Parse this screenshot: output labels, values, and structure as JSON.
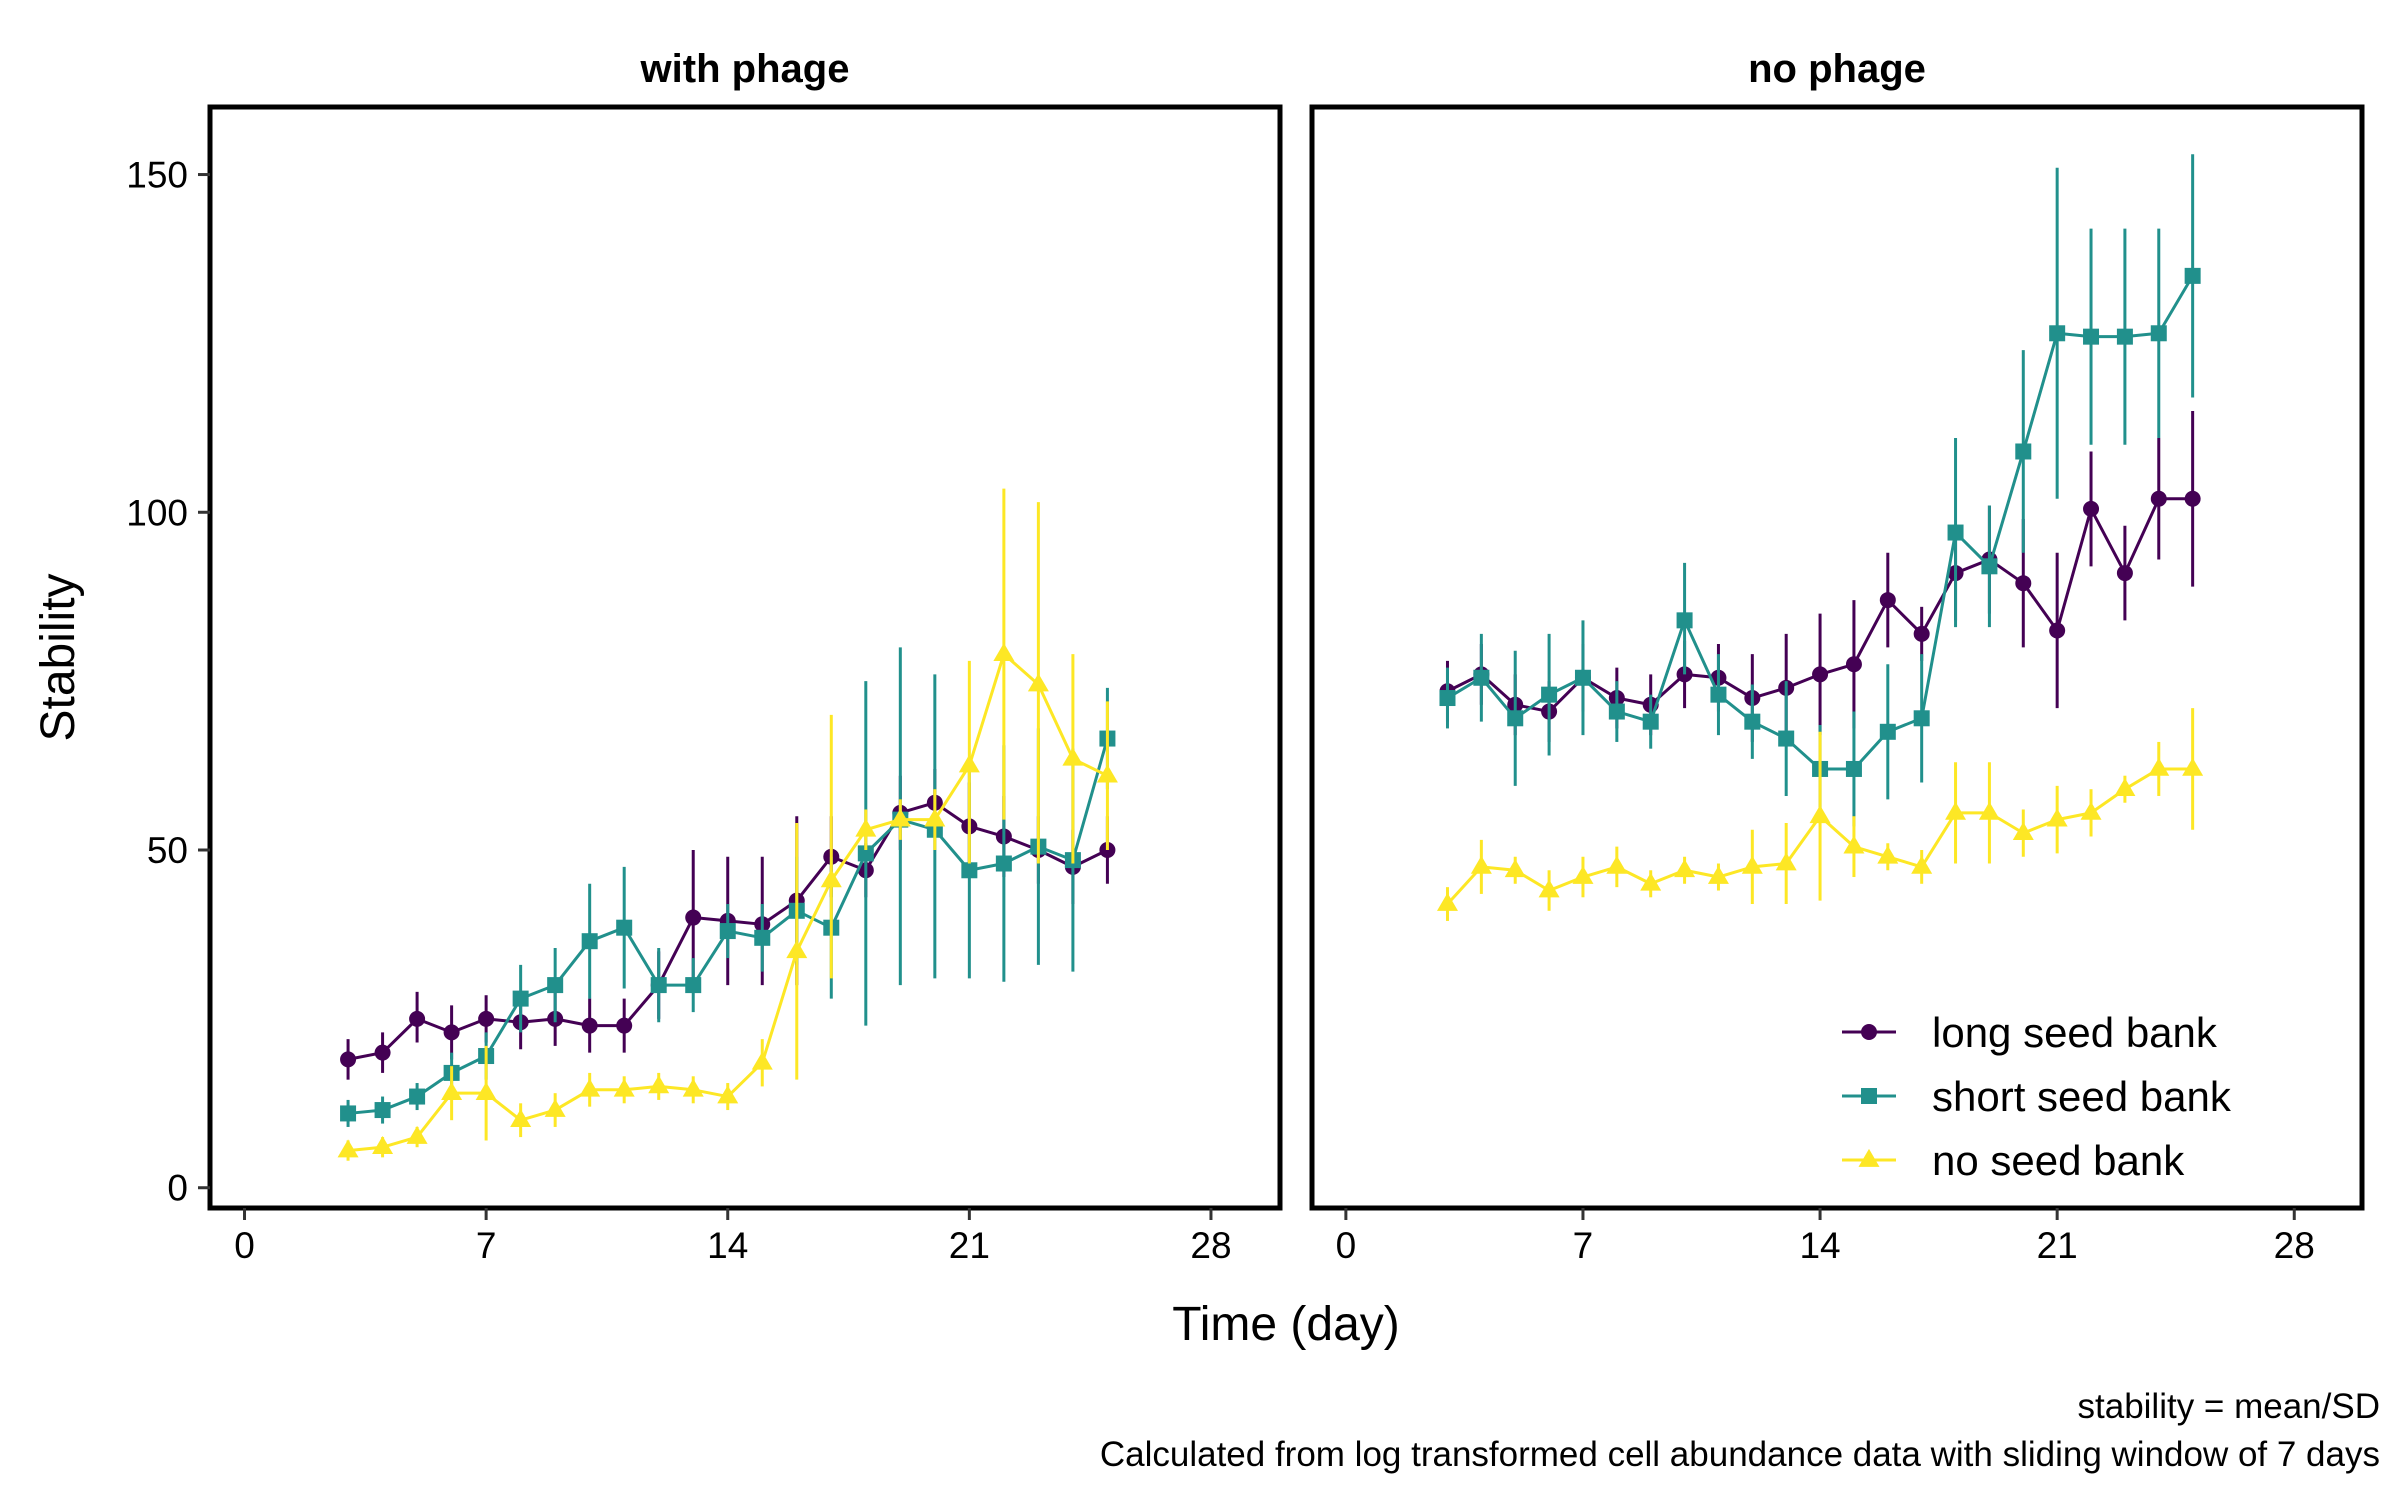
{
  "chart_data": {
    "type": "line",
    "xlabel": "Time (day)",
    "ylabel": "Stability",
    "xlim": [
      -1,
      30
    ],
    "ylim": [
      -3,
      160
    ],
    "x_ticks": [
      0,
      7,
      14,
      21,
      28
    ],
    "y_ticks": [
      0,
      50,
      100,
      150
    ],
    "grid": false,
    "legend_position": "bottom-right of right panel",
    "caption": [
      "stability = mean/SD",
      "Calculated from log transformed cell abundance data with sliding window of 7 days"
    ],
    "x": [
      3,
      4,
      5,
      6,
      7,
      8,
      9,
      10,
      11,
      12,
      13,
      14,
      15,
      16,
      17,
      18,
      19,
      20,
      21,
      22,
      23,
      24,
      25
    ],
    "series_styles": [
      {
        "name": "long seed bank",
        "color": "#440154",
        "marker": "circle"
      },
      {
        "name": "short seed bank",
        "color": "#21908C",
        "marker": "square"
      },
      {
        "name": "no seed bank",
        "color": "#FDE725",
        "marker": "triangle"
      }
    ],
    "panels": [
      {
        "title": "with phage",
        "series": [
          {
            "name": "long seed bank",
            "y": [
              19,
              20,
              25,
              23,
              25,
              24.5,
              25,
              24,
              24,
              30,
              40,
              39.5,
              39,
              42.5,
              49,
              47,
              55.5,
              57,
              53.5,
              52,
              50,
              47.5,
              50
            ],
            "lo": [
              16,
              17,
              21.5,
              19,
              21.5,
              20.5,
              21,
              20,
              20,
              25,
              30,
              30,
              30,
              30,
              43,
              43,
              50,
              52,
              47,
              46,
              45,
              42,
              45
            ],
            "hi": [
              22,
              23,
              29,
              27,
              28.5,
              28.5,
              29,
              28,
              28,
              35,
              50,
              49,
              49,
              55,
              55,
              51,
              61,
              62,
              60,
              58,
              55,
              53,
              55
            ]
          },
          {
            "name": "short seed bank",
            "y": [
              11,
              11.5,
              13.5,
              17,
              19.5,
              28,
              30,
              36.5,
              38.5,
              30,
              30,
              38,
              37,
              41,
              38.5,
              49.5,
              54.5,
              53,
              47,
              48,
              50.5,
              48.5,
              66.5
            ],
            "lo": [
              9,
              9.5,
              11.5,
              14,
              16,
              23,
              24.5,
              28,
              29.5,
              24.5,
              26,
              34,
              32,
              33,
              28,
              24,
              30,
              31,
              31,
              30.5,
              33,
              32,
              59
            ],
            "hi": [
              13,
              13.5,
              15.5,
              20,
              23,
              33,
              35.5,
              45,
              47.5,
              35.5,
              34,
              42,
              42,
              49,
              49,
              75,
              80,
              76,
              63,
              65.5,
              68,
              65,
              74
            ]
          },
          {
            "name": "no seed bank",
            "y": [
              5.5,
              6,
              7.5,
              14,
              14,
              10,
              11.5,
              14.5,
              14.5,
              15,
              14.5,
              13.5,
              18.5,
              35,
              45.5,
              53,
              54.5,
              54.5,
              62.5,
              79,
              74.5,
              63.5,
              61
            ],
            "lo": [
              4,
              4.5,
              6,
              10,
              7,
              7.5,
              9,
              12,
              12.5,
              13,
              12.5,
              11.5,
              15,
              16,
              31,
              50,
              51.5,
              50,
              48,
              54.5,
              48,
              48,
              50
            ],
            "hi": [
              7,
              7.5,
              9,
              18,
              21,
              12.5,
              14,
              17,
              16.5,
              17,
              16.5,
              15.5,
              22,
              54,
              70,
              56,
              57.5,
              59,
              78,
              103.5,
              101.5,
              79,
              72
            ]
          }
        ]
      },
      {
        "title": "no phage",
        "series": [
          {
            "name": "long seed bank",
            "y": [
              73.5,
              76,
              71.5,
              70.5,
              75.5,
              72.5,
              71.5,
              76,
              75.5,
              72.5,
              74,
              76,
              77.5,
              87,
              82,
              91,
              93,
              89.5,
              82.5,
              100.5,
              91,
              102,
              102
            ],
            "lo": [
              69,
              71.5,
              67,
              66,
              70.5,
              68,
              67,
              71,
              70.5,
              66,
              66,
              67,
              68,
              80,
              78,
              84,
              85,
              80,
              71,
              92,
              84,
              93,
              89
            ],
            "hi": [
              78,
              80.5,
              76,
              75,
              80.5,
              77,
              76,
              81,
              80.5,
              79,
              82,
              85,
              87,
              94,
              86,
              98,
              101,
              99,
              94,
              109,
              98,
              111,
              115
            ]
          },
          {
            "name": "short seed bank",
            "y": [
              72.5,
              75.5,
              69.5,
              73,
              75.5,
              70.5,
              69,
              84,
              73,
              69,
              66.5,
              62,
              62,
              67.5,
              69.5,
              97,
              92,
              109,
              126.5,
              126,
              126,
              126.5,
              135
            ],
            "lo": [
              68,
              69,
              59.5,
              64,
              67,
              66,
              65,
              76,
              67,
              63.5,
              58,
              55.5,
              53.5,
              57.5,
              60,
              83,
              83,
              94,
              102,
              110,
              110,
              111,
              117
            ],
            "hi": [
              77,
              82,
              79.5,
              82,
              84,
              75,
              73,
              92.5,
              79,
              74.5,
              75,
              68.5,
              70.5,
              77.5,
              79,
              111,
              101,
              124,
              151,
              142,
              142,
              142,
              153
            ]
          },
          {
            "name": "no seed bank",
            "y": [
              42,
              47.5,
              47,
              44,
              46,
              47.5,
              45,
              47,
              46,
              47.5,
              48,
              55,
              50.5,
              49,
              47.5,
              55.5,
              55.5,
              52.5,
              54.5,
              55.5,
              59,
              62,
              62
            ],
            "lo": [
              39.5,
              43.5,
              45,
              41,
              43,
              44.5,
              43,
              45,
              44,
              42,
              42,
              42.5,
              46,
              47,
              45,
              48,
              48,
              49,
              49.5,
              52,
              57,
              58,
              53
            ],
            "hi": [
              44.5,
              51.5,
              49,
              47,
              49,
              50.5,
              47,
              49,
              48,
              53,
              54,
              67.5,
              55,
              51,
              50,
              63,
              63,
              56,
              59.5,
              59,
              61,
              66,
              71
            ]
          }
        ]
      }
    ]
  }
}
